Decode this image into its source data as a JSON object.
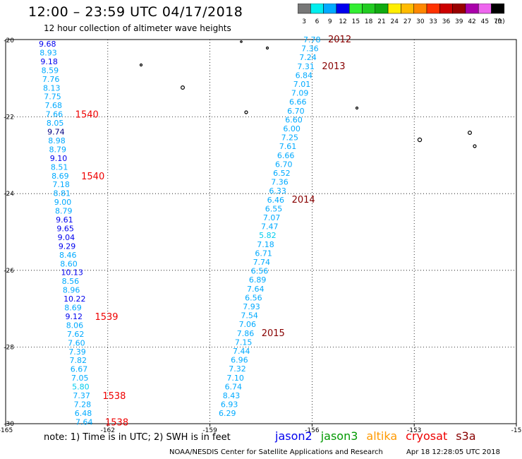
{
  "header": {
    "title": "12:00 – 23:59 UTC 04/17/2018",
    "subtitle": "12 hour collection of altimeter wave heights"
  },
  "colorbar": {
    "labels": [
      "3",
      "6",
      "9",
      "12",
      "15",
      "18",
      "21",
      "24",
      "27",
      "30",
      "33",
      "36",
      "39",
      "42",
      "45",
      "70",
      "(ft)"
    ],
    "colors": [
      "#777777",
      "#00eeee",
      "#00aaff",
      "#0000ee",
      "#33ee33",
      "#22cc22",
      "#11aa11",
      "#ffee00",
      "#ffbb00",
      "#ff8800",
      "#ff3300",
      "#cc0000",
      "#990000",
      "#aa00aa",
      "#ee66ee",
      "#000000"
    ]
  },
  "map": {
    "lon_ticks": [
      "-165",
      "-162",
      "-159",
      "-156",
      "-153",
      "-15"
    ],
    "lat_ticks": [
      "-20",
      "-22",
      "-24",
      "-26",
      "-28",
      "-30"
    ]
  },
  "tracks": [
    {
      "name": "west-track",
      "values": [
        {
          "t": "9.68",
          "c": "#0000ee"
        },
        {
          "t": "8.93",
          "c": "#00aaff"
        },
        {
          "t": "9.18",
          "c": "#0000ee"
        },
        {
          "t": "8.59",
          "c": "#00aaff"
        },
        {
          "t": "7.76",
          "c": "#00aaff"
        },
        {
          "t": "8.13",
          "c": "#00aaff"
        },
        {
          "t": "7.75",
          "c": "#00aaff"
        },
        {
          "t": "7.68",
          "c": "#00aaff"
        },
        {
          "t": "7.66",
          "c": "#00aaff"
        },
        {
          "t": "8.05",
          "c": "#00aaff"
        },
        {
          "t": "9.74",
          "c": "#000080"
        },
        {
          "t": "8.98",
          "c": "#00aaff"
        },
        {
          "t": "8.79",
          "c": "#00aaff"
        },
        {
          "t": "9.10",
          "c": "#0000ee"
        },
        {
          "t": "8.51",
          "c": "#00aaff"
        },
        {
          "t": "8.69",
          "c": "#00aaff"
        },
        {
          "t": "7.18",
          "c": "#00aaff"
        },
        {
          "t": "8.81",
          "c": "#00aaff"
        },
        {
          "t": "9.00",
          "c": "#00aaff"
        },
        {
          "t": "8.79",
          "c": "#00aaff"
        },
        {
          "t": "9.61",
          "c": "#0000ee"
        },
        {
          "t": "9.65",
          "c": "#0000ee"
        },
        {
          "t": "9.04",
          "c": "#0000ee"
        },
        {
          "t": "9.29",
          "c": "#0000ee"
        },
        {
          "t": "8.46",
          "c": "#00aaff"
        },
        {
          "t": "8.60",
          "c": "#00aaff"
        },
        {
          "t": "10.13",
          "c": "#0000ee"
        },
        {
          "t": "8.56",
          "c": "#00aaff"
        },
        {
          "t": "8.96",
          "c": "#00aaff"
        },
        {
          "t": "10.22",
          "c": "#0000ee"
        },
        {
          "t": "8.69",
          "c": "#00aaff"
        },
        {
          "t": "9.12",
          "c": "#0000ee"
        },
        {
          "t": "8.06",
          "c": "#00aaff"
        },
        {
          "t": "7.62",
          "c": "#00aaff"
        },
        {
          "t": "7.60",
          "c": "#00aaff"
        },
        {
          "t": "7.39",
          "c": "#00aaff"
        },
        {
          "t": "7.82",
          "c": "#00aaff"
        },
        {
          "t": "6.67",
          "c": "#00aaff"
        },
        {
          "t": "7.05",
          "c": "#00aaff"
        },
        {
          "t": "5.80",
          "c": "#00ccee"
        },
        {
          "t": "7.37",
          "c": "#00aaff"
        },
        {
          "t": "7.28",
          "c": "#00aaff"
        },
        {
          "t": "6.48",
          "c": "#00aaff"
        },
        {
          "t": "7.64",
          "c": "#00aaff"
        }
      ],
      "times": [
        {
          "t": "1540",
          "c": "#ee0000"
        },
        {
          "t": "1540",
          "c": "#ee0000"
        },
        {
          "t": "1539",
          "c": "#ee0000"
        },
        {
          "t": "1538",
          "c": "#ee0000"
        },
        {
          "t": "1538",
          "c": "#ee0000"
        }
      ]
    },
    {
      "name": "east-track",
      "values": [
        {
          "t": "7.78",
          "c": "#00aaff"
        },
        {
          "t": "7.36",
          "c": "#00aaff"
        },
        {
          "t": "7.24",
          "c": "#00aaff"
        },
        {
          "t": "7.31",
          "c": "#00aaff"
        },
        {
          "t": "6.84",
          "c": "#00aaff"
        },
        {
          "t": "7.01",
          "c": "#00aaff"
        },
        {
          "t": "7.09",
          "c": "#00aaff"
        },
        {
          "t": "6.66",
          "c": "#00aaff"
        },
        {
          "t": "6.70",
          "c": "#00aaff"
        },
        {
          "t": "6.60",
          "c": "#00aaff"
        },
        {
          "t": "6.00",
          "c": "#00aaff"
        },
        {
          "t": "7.25",
          "c": "#00aaff"
        },
        {
          "t": "7.61",
          "c": "#00aaff"
        },
        {
          "t": "6.66",
          "c": "#00aaff"
        },
        {
          "t": "6.70",
          "c": "#00aaff"
        },
        {
          "t": "6.52",
          "c": "#00aaff"
        },
        {
          "t": "7.36",
          "c": "#00aaff"
        },
        {
          "t": "6.33",
          "c": "#00aaff"
        },
        {
          "t": "6.46",
          "c": "#00aaff"
        },
        {
          "t": "6.55",
          "c": "#00aaff"
        },
        {
          "t": "7.07",
          "c": "#00aaff"
        },
        {
          "t": "7.47",
          "c": "#00aaff"
        },
        {
          "t": "5.82",
          "c": "#00ccee"
        },
        {
          "t": "7.18",
          "c": "#00aaff"
        },
        {
          "t": "6.71",
          "c": "#00aaff"
        },
        {
          "t": "7.74",
          "c": "#00aaff"
        },
        {
          "t": "6.56",
          "c": "#00aaff"
        },
        {
          "t": "6.89",
          "c": "#00aaff"
        },
        {
          "t": "7.64",
          "c": "#00aaff"
        },
        {
          "t": "6.56",
          "c": "#00aaff"
        },
        {
          "t": "7.93",
          "c": "#00aaff"
        },
        {
          "t": "7.54",
          "c": "#00aaff"
        },
        {
          "t": "7.06",
          "c": "#00aaff"
        },
        {
          "t": "7.86",
          "c": "#00aaff"
        },
        {
          "t": "7.15",
          "c": "#00aaff"
        },
        {
          "t": "7.44",
          "c": "#00aaff"
        },
        {
          "t": "6.96",
          "c": "#00aaff"
        },
        {
          "t": "7.32",
          "c": "#00aaff"
        },
        {
          "t": "7.10",
          "c": "#00aaff"
        },
        {
          "t": "6.74",
          "c": "#00aaff"
        },
        {
          "t": "8.43",
          "c": "#00aaff"
        },
        {
          "t": "6.93",
          "c": "#00aaff"
        },
        {
          "t": "6.29",
          "c": "#00aaff"
        }
      ],
      "times": [
        {
          "t": "2012",
          "c": "#880000"
        },
        {
          "t": "2013",
          "c": "#880000"
        },
        {
          "t": "2014",
          "c": "#880000"
        },
        {
          "t": "2015",
          "c": "#880000"
        }
      ]
    }
  ],
  "footer": {
    "note": "note:  1) Time is in UTC;  2) SWH is in feet",
    "satellites": [
      {
        "name": "jason2",
        "color": "#0000ee"
      },
      {
        "name": "jason3",
        "color": "#009900"
      },
      {
        "name": "altika",
        "color": "#ff9900"
      },
      {
        "name": "cryosat",
        "color": "#ee0000"
      },
      {
        "name": "s3a",
        "color": "#880000"
      }
    ],
    "credit": "NOAA/NESDIS Center for Satellite Applications and Research",
    "timestamp": "Apr 18 12:28:05 UTC 2018"
  }
}
